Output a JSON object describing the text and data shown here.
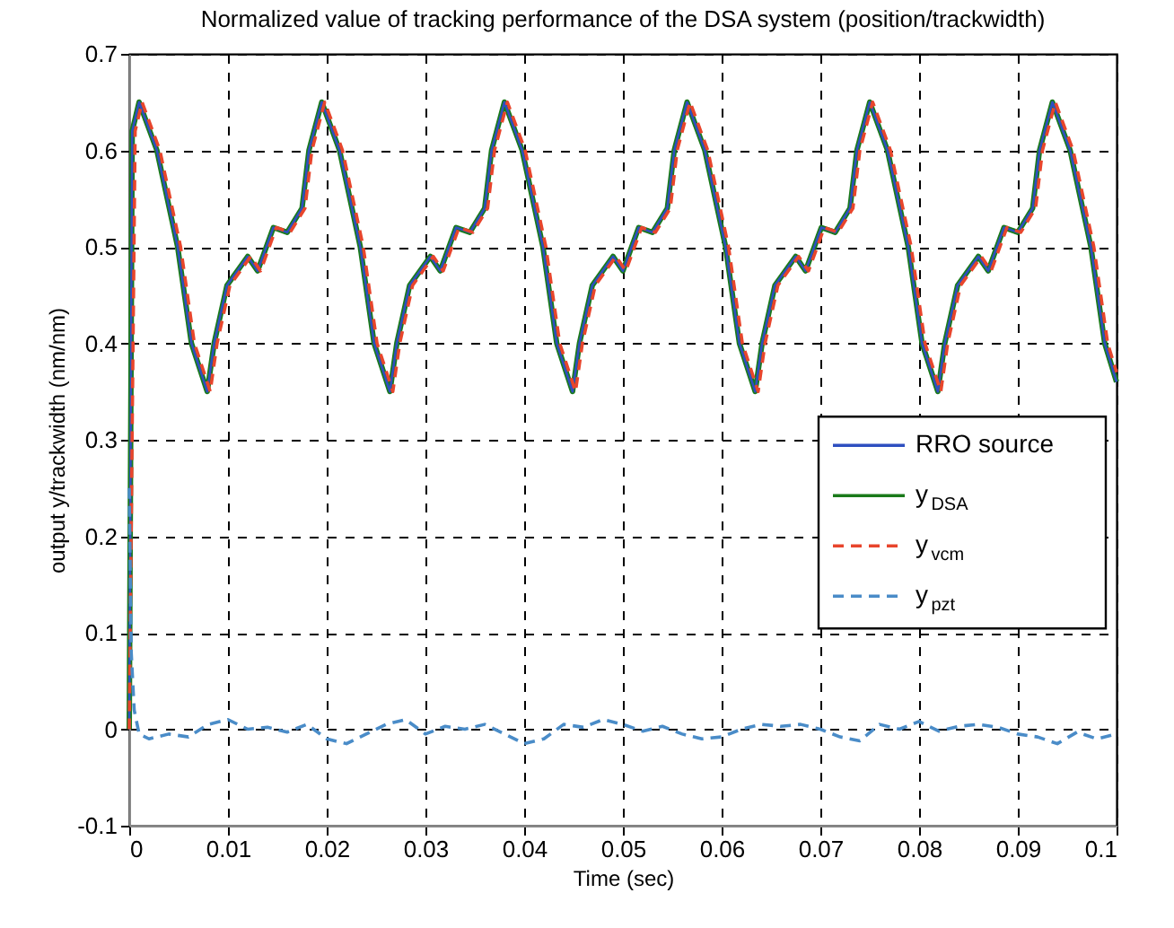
{
  "chart_data": {
    "type": "line",
    "title": "Normalized value of tracking performance of the DSA system (position/trackwidth)",
    "xlabel": "Time (sec)",
    "ylabel": "output y/trackwidth (nm/nm)",
    "xlim": [
      0,
      0.1
    ],
    "xticks": [
      0,
      0.01,
      0.02,
      0.03,
      0.04,
      0.05,
      0.06,
      0.07,
      0.08,
      0.09,
      0.1
    ],
    "ylim": [
      -0.1,
      0.7
    ],
    "yticks": [
      -0.1,
      0,
      0.1,
      0.2,
      0.3,
      0.4,
      0.5,
      0.6,
      0.7
    ],
    "grid": true,
    "legend": "right",
    "marker": "none",
    "x": [
      0,
      0.0003,
      0.001,
      0.0028,
      0.0049,
      0.0063,
      0.0079,
      0.0086,
      0.0099,
      0.012,
      0.013,
      0.0146,
      0.016,
      0.0175,
      0.0182,
      0.0195,
      0.0213,
      0.0234,
      0.0248,
      0.0264,
      0.0271,
      0.0284,
      0.0305,
      0.0315,
      0.0331,
      0.0345,
      0.036,
      0.0367,
      0.038,
      0.0398,
      0.0419,
      0.0433,
      0.0449,
      0.0456,
      0.0469,
      0.049,
      0.05,
      0.0516,
      0.053,
      0.0545,
      0.0552,
      0.0565,
      0.0583,
      0.0604,
      0.0618,
      0.0634,
      0.0641,
      0.0654,
      0.0675,
      0.0685,
      0.0701,
      0.0715,
      0.073,
      0.0737,
      0.075,
      0.0768,
      0.0789,
      0.0803,
      0.0819,
      0.0826,
      0.0839,
      0.086,
      0.087,
      0.0886,
      0.09,
      0.0915,
      0.0922,
      0.0935,
      0.0953,
      0.0974,
      0.0988,
      0.1
    ],
    "series": [
      {
        "name": "RRO source",
        "color": "#2e4fc0",
        "line_style": "solid",
        "values": [
          0,
          0.62,
          0.65,
          0.6,
          0.5,
          0.4,
          0.35,
          0.4,
          0.46,
          0.49,
          0.475,
          0.52,
          0.515,
          0.54,
          0.6,
          0.65,
          0.6,
          0.5,
          0.4,
          0.35,
          0.4,
          0.46,
          0.49,
          0.475,
          0.52,
          0.515,
          0.54,
          0.6,
          0.65,
          0.6,
          0.5,
          0.4,
          0.35,
          0.4,
          0.46,
          0.49,
          0.475,
          0.52,
          0.515,
          0.54,
          0.6,
          0.65,
          0.6,
          0.5,
          0.4,
          0.35,
          0.4,
          0.46,
          0.49,
          0.475,
          0.52,
          0.515,
          0.54,
          0.6,
          0.65,
          0.6,
          0.5,
          0.4,
          0.35,
          0.4,
          0.46,
          0.49,
          0.475,
          0.52,
          0.515,
          0.54,
          0.6,
          0.65,
          0.6,
          0.5,
          0.4,
          0.36
        ]
      },
      {
        "name": "y$_{DSA}$",
        "color": "#1a7a1a",
        "line_style": "solid",
        "values": [
          0,
          0.62,
          0.65,
          0.6,
          0.5,
          0.4,
          0.35,
          0.4,
          0.46,
          0.49,
          0.475,
          0.52,
          0.515,
          0.54,
          0.6,
          0.65,
          0.6,
          0.5,
          0.4,
          0.35,
          0.4,
          0.46,
          0.49,
          0.475,
          0.52,
          0.515,
          0.54,
          0.6,
          0.65,
          0.6,
          0.5,
          0.4,
          0.35,
          0.4,
          0.46,
          0.49,
          0.475,
          0.52,
          0.515,
          0.54,
          0.6,
          0.65,
          0.6,
          0.5,
          0.4,
          0.35,
          0.4,
          0.46,
          0.49,
          0.475,
          0.52,
          0.515,
          0.54,
          0.6,
          0.65,
          0.6,
          0.5,
          0.4,
          0.35,
          0.4,
          0.46,
          0.49,
          0.475,
          0.52,
          0.515,
          0.54,
          0.6,
          0.65,
          0.6,
          0.5,
          0.4,
          0.36
        ]
      },
      {
        "name": "y$_{vcm}$",
        "color": "#e8452c",
        "line_style": "dashed",
        "x": [
          0,
          0.0006,
          0.0013,
          0.0031,
          0.0052,
          0.0066,
          0.0082,
          0.0089,
          0.0102,
          0.0123,
          0.0133,
          0.0149,
          0.0163,
          0.0178,
          0.0185,
          0.0198,
          0.0216,
          0.0237,
          0.0251,
          0.0267,
          0.0274,
          0.0287,
          0.0308,
          0.0318,
          0.0334,
          0.0348,
          0.0363,
          0.037,
          0.0383,
          0.0401,
          0.0422,
          0.0436,
          0.0452,
          0.0459,
          0.0472,
          0.0493,
          0.0503,
          0.0519,
          0.0533,
          0.0548,
          0.0555,
          0.0568,
          0.0586,
          0.0607,
          0.0621,
          0.0637,
          0.0644,
          0.0657,
          0.0678,
          0.0688,
          0.0704,
          0.0718,
          0.0733,
          0.074,
          0.0753,
          0.0771,
          0.0792,
          0.0806,
          0.0822,
          0.0829,
          0.0842,
          0.0863,
          0.0873,
          0.0889,
          0.0903,
          0.0918,
          0.0925,
          0.0938,
          0.0956,
          0.0977,
          0.0991,
          0.1
        ],
        "values": [
          0,
          0.62,
          0.65,
          0.6,
          0.5,
          0.4,
          0.35,
          0.4,
          0.46,
          0.49,
          0.475,
          0.52,
          0.515,
          0.54,
          0.6,
          0.65,
          0.6,
          0.5,
          0.4,
          0.35,
          0.4,
          0.46,
          0.49,
          0.475,
          0.52,
          0.515,
          0.54,
          0.6,
          0.65,
          0.6,
          0.5,
          0.4,
          0.35,
          0.4,
          0.46,
          0.49,
          0.475,
          0.52,
          0.515,
          0.54,
          0.6,
          0.65,
          0.6,
          0.5,
          0.4,
          0.35,
          0.4,
          0.46,
          0.49,
          0.475,
          0.52,
          0.515,
          0.54,
          0.6,
          0.65,
          0.6,
          0.5,
          0.4,
          0.35,
          0.4,
          0.46,
          0.49,
          0.475,
          0.52,
          0.515,
          0.54,
          0.6,
          0.65,
          0.6,
          0.5,
          0.4,
          0.37
        ]
      },
      {
        "name": "y$_{pzt}$",
        "color": "#4a8cc8",
        "line_style": "dashed",
        "x": [
          0,
          0.0002,
          0.0005,
          0.001,
          0.002,
          0.004,
          0.006,
          0.008,
          0.01,
          0.012,
          0.014,
          0.016,
          0.018,
          0.02,
          0.022,
          0.024,
          0.026,
          0.028,
          0.03,
          0.032,
          0.034,
          0.036,
          0.038,
          0.04,
          0.042,
          0.044,
          0.046,
          0.048,
          0.05,
          0.052,
          0.054,
          0.056,
          0.058,
          0.06,
          0.062,
          0.064,
          0.066,
          0.068,
          0.07,
          0.072,
          0.074,
          0.076,
          0.078,
          0.08,
          0.082,
          0.084,
          0.086,
          0.088,
          0.09,
          0.092,
          0.094,
          0.096,
          0.098,
          0.1
        ],
        "values": [
          0.25,
          0.08,
          0.02,
          -0.005,
          -0.01,
          -0.005,
          -0.008,
          0.005,
          0.01,
          0,
          0.002,
          -0.003,
          0.005,
          -0.01,
          -0.015,
          -0.005,
          0.005,
          0.01,
          -0.005,
          0.003,
          0,
          0.005,
          -0.005,
          -0.015,
          -0.01,
          0.005,
          0.002,
          0.01,
          0.005,
          -0.002,
          0.003,
          -0.005,
          -0.01,
          -0.008,
          0,
          0.005,
          0.003,
          0.005,
          0,
          -0.008,
          -0.012,
          0.005,
          0,
          0.008,
          -0.002,
          0.003,
          0.005,
          0.002,
          -0.005,
          -0.008,
          -0.015,
          -0.003,
          -0.01,
          -0.005
        ]
      }
    ]
  }
}
